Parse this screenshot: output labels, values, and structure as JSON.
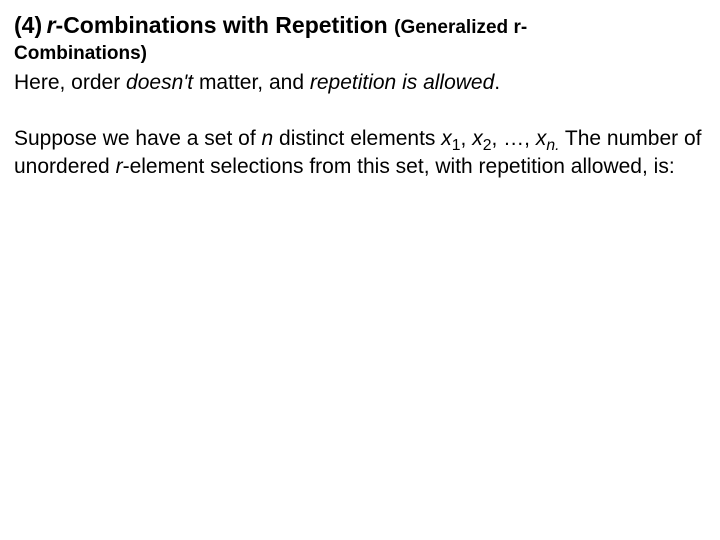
{
  "heading": {
    "number": "(4)",
    "r": "r",
    "title_rest": "-Combinations with Repetition",
    "paren_line1": "(Generalized r-",
    "paren_line2": "Combinations)"
  },
  "line1": {
    "pre": "Here, order ",
    "doesnt": "doesn't",
    "mid": " matter, and ",
    "rep": "repetition is allowed",
    "end": "."
  },
  "para2": {
    "t1": "Suppose we have a set of ",
    "n": "n",
    "t2": " distinct elements ",
    "x": "x",
    "s1": "1",
    "c1": ", ",
    "s2": "2",
    "c2": ", …, ",
    "sn": "n.",
    "t3": " The number of unordered ",
    "r": "r",
    "t4": "-element selections from this set, with repetition allowed, is:"
  }
}
